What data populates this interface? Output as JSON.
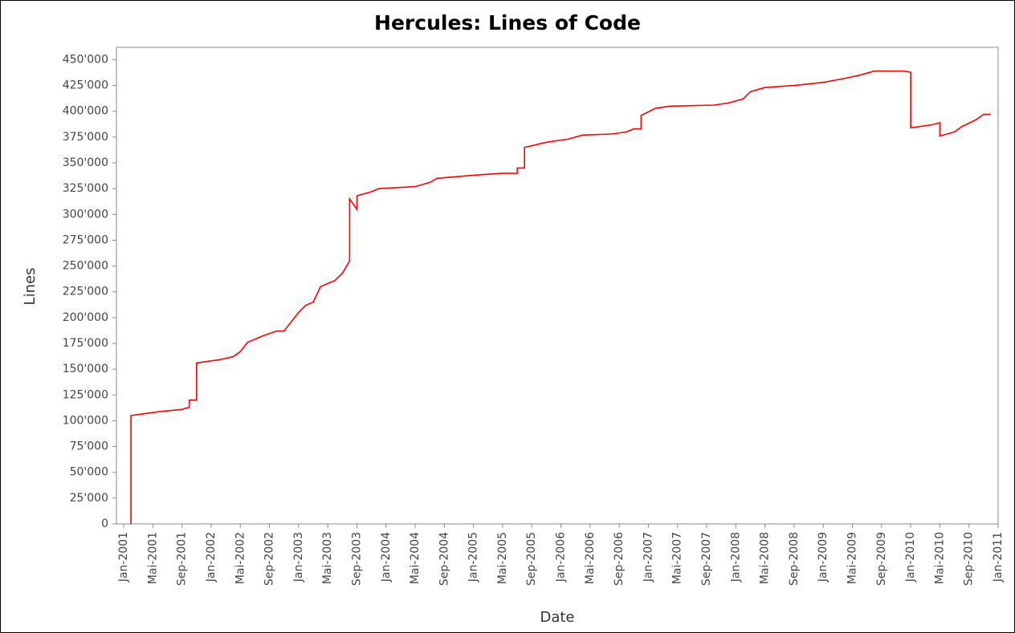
{
  "chart_data": {
    "type": "line",
    "title": "Hercules: Lines of Code",
    "x_label": "Date",
    "y_label": "Lines",
    "series": [
      {
        "color": "#ff0000",
        "x": [
          "2001-02",
          "2001-02",
          "2001-04",
          "2001-06",
          "2001-09",
          "2001-10",
          "2001-10",
          "2001-11",
          "2001-11",
          "2002-02",
          "2002-04",
          "2002-05",
          "2002-06",
          "2002-08",
          "2002-10",
          "2002-11",
          "2002-12",
          "2003-01",
          "2003-02",
          "2003-03",
          "2003-04",
          "2003-06",
          "2003-07",
          "2003-08",
          "2003-08",
          "2003-09",
          "2003-09",
          "2003-11",
          "2003-12",
          "2004-05",
          "2004-07",
          "2004-08",
          "2005-01",
          "2005-05",
          "2005-07",
          "2005-07",
          "2005-08",
          "2005-08",
          "2005-11",
          "2006-02",
          "2006-04",
          "2006-08",
          "2006-10",
          "2006-11",
          "2006-12",
          "2006-12",
          "2007-02",
          "2007-04",
          "2007-10",
          "2007-12",
          "2008-02",
          "2008-03",
          "2008-05",
          "2008-09",
          "2009-01",
          "2009-04",
          "2009-06",
          "2009-08",
          "2009-12",
          "2010-01",
          "2010-01",
          "2010-04",
          "2010-05",
          "2010-05",
          "2010-07",
          "2010-08",
          "2010-10",
          "2010-11",
          "2010-12"
        ],
        "values": [
          0,
          105000,
          107000,
          109000,
          111000,
          113000,
          120000,
          120000,
          156000,
          159000,
          162000,
          167000,
          176000,
          182000,
          187000,
          187000,
          196000,
          205000,
          212000,
          215000,
          230000,
          236000,
          243000,
          255000,
          315000,
          305000,
          318000,
          322000,
          325000,
          327000,
          331000,
          335000,
          338000,
          340000,
          340000,
          345000,
          345000,
          365000,
          370000,
          373000,
          377000,
          378000,
          380000,
          383000,
          383000,
          396000,
          403000,
          405000,
          406000,
          408000,
          412000,
          419000,
          423000,
          425000,
          428000,
          432000,
          435000,
          439000,
          439000,
          438000,
          384000,
          387000,
          389000,
          376000,
          380000,
          385000,
          392000,
          397000,
          397000
        ]
      }
    ],
    "xlim": [
      "2000-12",
      "2011-01"
    ],
    "xticks": [
      {
        "value": "2001-01",
        "label": "Jan-2001"
      },
      {
        "value": "2001-05",
        "label": "Mai-2001"
      },
      {
        "value": "2001-09",
        "label": "Sep-2001"
      },
      {
        "value": "2002-01",
        "label": "Jan-2002"
      },
      {
        "value": "2002-05",
        "label": "Mai-2002"
      },
      {
        "value": "2002-09",
        "label": "Sep-2002"
      },
      {
        "value": "2003-01",
        "label": "Jan-2003"
      },
      {
        "value": "2003-05",
        "label": "Mai-2003"
      },
      {
        "value": "2003-09",
        "label": "Sep-2003"
      },
      {
        "value": "2004-01",
        "label": "Jan-2004"
      },
      {
        "value": "2004-05",
        "label": "Mai-2004"
      },
      {
        "value": "2004-09",
        "label": "Sep-2004"
      },
      {
        "value": "2005-01",
        "label": "Jan-2005"
      },
      {
        "value": "2005-05",
        "label": "Mai-2005"
      },
      {
        "value": "2005-09",
        "label": "Sep-2005"
      },
      {
        "value": "2006-01",
        "label": "Jan-2006"
      },
      {
        "value": "2006-05",
        "label": "Mai-2006"
      },
      {
        "value": "2006-09",
        "label": "Sep-2006"
      },
      {
        "value": "2007-01",
        "label": "Jan-2007"
      },
      {
        "value": "2007-05",
        "label": "Mai-2007"
      },
      {
        "value": "2007-09",
        "label": "Sep-2007"
      },
      {
        "value": "2008-01",
        "label": "Jan-2008"
      },
      {
        "value": "2008-05",
        "label": "Mai-2008"
      },
      {
        "value": "2008-09",
        "label": "Sep-2008"
      },
      {
        "value": "2009-01",
        "label": "Jan-2009"
      },
      {
        "value": "2009-05",
        "label": "Mai-2009"
      },
      {
        "value": "2009-09",
        "label": "Sep-2009"
      },
      {
        "value": "2010-01",
        "label": "Jan-2010"
      },
      {
        "value": "2010-05",
        "label": "Mai-2010"
      },
      {
        "value": "2010-09",
        "label": "Sep-2010"
      },
      {
        "value": "2011-01",
        "label": "Jan-2011"
      }
    ],
    "ylim": [
      0,
      462000
    ],
    "yticks": [
      0,
      {
        "value": 25000,
        "label": "25'000"
      },
      {
        "value": 50000,
        "label": "50'000"
      },
      {
        "value": 75000,
        "label": "75'000"
      },
      {
        "value": 100000,
        "label": "100'000"
      },
      {
        "value": 125000,
        "label": "125'000"
      },
      {
        "value": 150000,
        "label": "150'000"
      },
      {
        "value": 175000,
        "label": "175'000"
      },
      {
        "value": 200000,
        "label": "200'000"
      },
      {
        "value": 225000,
        "label": "225'000"
      },
      {
        "value": 250000,
        "label": "250'000"
      },
      {
        "value": 275000,
        "label": "275'000"
      },
      {
        "value": 300000,
        "label": "300'000"
      },
      {
        "value": 325000,
        "label": "325'000"
      },
      {
        "value": 350000,
        "label": "350'000"
      },
      {
        "value": 375000,
        "label": "375'000"
      },
      {
        "value": 400000,
        "label": "400'000"
      },
      {
        "value": 425000,
        "label": "425'000"
      },
      {
        "value": 450000,
        "label": "450'000"
      }
    ],
    "grid": false
  }
}
